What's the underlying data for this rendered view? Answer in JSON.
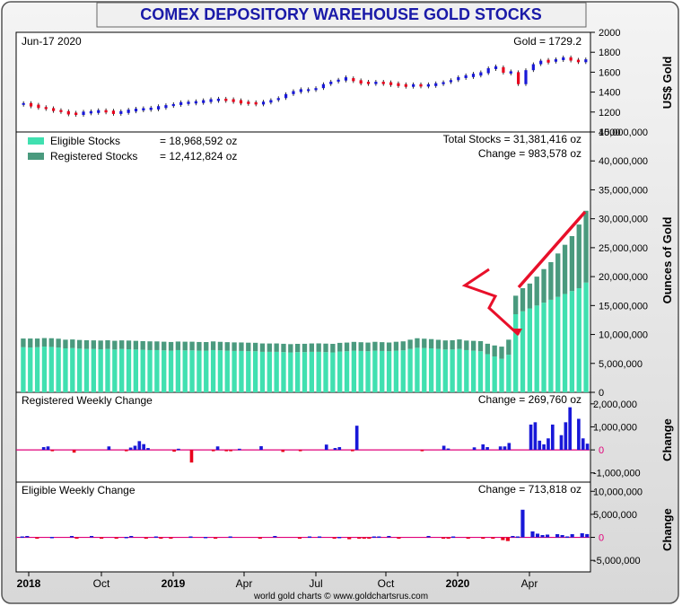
{
  "title": "COMEX DEPOSITORY WAREHOUSE GOLD STOCKS",
  "footer": "world gold charts © www.goldchartsrus.com",
  "colors": {
    "title": "#1a1aa8",
    "eligible": "#40e0b0",
    "registered": "#4a9a7e",
    "up": "#1818d8",
    "down": "#e8001c",
    "zero_line": "#e0007a",
    "annotation": "#e8102a"
  },
  "gold_panel": {
    "date_label": "Jun-17  2020",
    "price_label": "Gold = 1729.2",
    "ylabel": "US$ Gold",
    "ticks": [
      "2000",
      "1800",
      "1600",
      "1400",
      "1200",
      "1000"
    ]
  },
  "stocks_panel": {
    "legend": [
      {
        "label": "Eligible Stocks",
        "value": "= 18,968,592 oz"
      },
      {
        "label": "Registered Stocks",
        "value": "= 12,412,824 oz"
      }
    ],
    "total_label": "Total Stocks = 31,381,416 oz",
    "change_label": "Change = 983,578 oz",
    "ylabel": "Ounces of Gold",
    "ticks": [
      "45,000,000",
      "40,000,000",
      "35,000,000",
      "30,000,000",
      "25,000,000",
      "20,000,000",
      "15,000,000",
      "10,000,000",
      "5,000,000",
      "0"
    ]
  },
  "registered_panel": {
    "label": "Registered Weekly Change",
    "change_label": "Change = 269,760 oz",
    "ylabel": "Change",
    "ticks": [
      "2,000,000",
      "1,000,000",
      "0",
      "-1,000,000"
    ]
  },
  "eligible_panel": {
    "label": "Eligible Weekly Change",
    "change_label": "Change = 713,818 oz",
    "ylabel": "Change",
    "ticks": [
      "10,000,000",
      "5,000,000",
      "0",
      "-5,000,000"
    ]
  },
  "x_axis": {
    "labels": [
      "2018",
      "Oct",
      "2019",
      "Apr",
      "Jul",
      "Oct",
      "2020",
      "Apr"
    ],
    "bold": [
      true,
      false,
      true,
      false,
      false,
      false,
      true,
      false
    ]
  },
  "chart_data": [
    {
      "type": "line",
      "title": "COMEX DEPOSITORY WAREHOUSE GOLD STOCKS",
      "ylabel": "US$ Gold",
      "ylim": [
        1000,
        2000
      ],
      "x_labels": [
        "2018",
        "Oct",
        "2019",
        "Apr",
        "Jul",
        "Oct",
        "2020",
        "Apr"
      ],
      "series": [
        {
          "name": "Gold",
          "values": [
            1281,
            1265,
            1250,
            1230,
            1220,
            1200,
            1185,
            1180,
            1195,
            1200,
            1210,
            1205,
            1190,
            1200,
            1215,
            1225,
            1230,
            1235,
            1250,
            1260,
            1280,
            1290,
            1295,
            1300,
            1310,
            1320,
            1325,
            1320,
            1310,
            1295,
            1290,
            1285,
            1295,
            1320,
            1340,
            1380,
            1410,
            1420,
            1420,
            1440,
            1480,
            1505,
            1525,
            1540,
            1510,
            1495,
            1490,
            1495,
            1490,
            1480,
            1470,
            1462,
            1470,
            1465,
            1470,
            1480,
            1500,
            1520,
            1550,
            1560,
            1575,
            1590,
            1640,
            1650,
            1595,
            1600,
            1480,
            1620,
            1680,
            1715,
            1705,
            1730,
            1740,
            1725,
            1700,
            1729
          ]
        }
      ]
    },
    {
      "type": "bar",
      "title": "",
      "ylabel": "Ounces of Gold",
      "ylim": [
        0,
        45000000
      ],
      "stacked": true,
      "series": [
        {
          "name": "Eligible Stocks",
          "values": [
            7800000,
            7750000,
            7800000,
            7900000,
            7850000,
            7750000,
            7600000,
            7650000,
            7550000,
            7500000,
            7500000,
            7450000,
            7500000,
            7400000,
            7500000,
            7450000,
            7400000,
            7350000,
            7300000,
            7300000,
            7250000,
            7200000,
            7300000,
            7250000,
            7250000,
            7200000,
            7200000,
            7300000,
            7250000,
            7200000,
            7150000,
            7150000,
            7100000,
            7100000,
            7000000,
            7000000,
            7000000,
            6950000,
            6900000,
            6950000,
            6950000,
            7000000,
            7000000,
            6950000,
            6900000,
            7050000,
            7100000,
            7200000,
            7150000,
            7100000,
            7200000,
            7150000,
            7100000,
            7200000,
            7250000,
            7500000,
            7700000,
            7650000,
            7600000,
            7500000,
            7400000,
            7400000,
            7500000,
            7300000,
            7200000,
            7100000,
            6600000,
            6200000,
            5800000,
            6500000,
            13500000,
            14000000,
            14500000,
            15000000,
            15500000,
            16000000,
            16500000,
            17000000,
            17500000,
            18000000,
            18968592
          ]
        },
        {
          "name": "Registered Stocks",
          "values": [
            1500000,
            1550000,
            1500000,
            1480000,
            1500000,
            1520000,
            1500000,
            1490000,
            1500000,
            1500000,
            1480000,
            1500000,
            1500000,
            1510000,
            1480000,
            1500000,
            1500000,
            1500000,
            1510000,
            1500000,
            1500000,
            1500000,
            1480000,
            1500000,
            1500000,
            1500000,
            1490000,
            1500000,
            1480000,
            1470000,
            1480000,
            1470000,
            1480000,
            1460000,
            1450000,
            1440000,
            1450000,
            1440000,
            1430000,
            1430000,
            1440000,
            1450000,
            1460000,
            1470000,
            1480000,
            1500000,
            1500000,
            1520000,
            1510000,
            1500000,
            1530000,
            1520000,
            1510000,
            1540000,
            1560000,
            1600000,
            1650000,
            1620000,
            1600000,
            1580000,
            1570000,
            1600000,
            1650000,
            1650000,
            1700000,
            1750000,
            1800000,
            1900000,
            2100000,
            2600000,
            3200000,
            4000000,
            4300000,
            5000000,
            5800000,
            6500000,
            7500000,
            8500000,
            9500000,
            11000000,
            12412824
          ]
        }
      ]
    },
    {
      "type": "bar",
      "title": "Registered Weekly Change",
      "ylabel": "Change",
      "ylim": [
        -1400000,
        2500000
      ],
      "series": [
        {
          "name": "Registered Weekly Change",
          "values": [
            0,
            0,
            0,
            0,
            0,
            120000,
            150000,
            -30000,
            0,
            0,
            0,
            0,
            -120000,
            0,
            0,
            0,
            0,
            0,
            0,
            0,
            150000,
            0,
            0,
            0,
            -20000,
            100000,
            180000,
            380000,
            250000,
            80000,
            0,
            0,
            0,
            0,
            0,
            -80000,
            50000,
            0,
            0,
            -550000,
            0,
            0,
            0,
            0,
            -20000,
            150000,
            0,
            -60000,
            -30000,
            0,
            50000,
            0,
            0,
            0,
            0,
            160000,
            0,
            0,
            0,
            0,
            -90000,
            0,
            0,
            0,
            -40000,
            0,
            0,
            0,
            0,
            0,
            230000,
            0,
            80000,
            120000,
            0,
            0,
            -50000,
            1050000,
            0,
            0,
            0,
            0,
            0,
            0,
            0,
            0,
            0,
            0,
            0,
            0,
            0,
            0,
            -30000,
            0,
            0,
            0,
            0,
            180000,
            60000,
            0,
            0,
            0,
            0,
            0,
            110000,
            0,
            240000,
            120000,
            0,
            0,
            150000,
            150000,
            300000,
            0,
            0,
            0,
            0,
            1100000,
            1200000,
            400000,
            240000,
            500000,
            1100000,
            0,
            640000,
            1200000,
            1850000,
            0,
            1350000,
            500000,
            270000
          ]
        }
      ]
    },
    {
      "type": "bar",
      "title": "Eligible Weekly Change",
      "ylabel": "Change",
      "ylim": [
        -7500000,
        12000000
      ],
      "series": [
        {
          "name": "Eligible Weekly Change",
          "values": [
            200000,
            300000,
            0,
            -200000,
            0,
            0,
            100000,
            0,
            0,
            0,
            300000,
            -100000,
            0,
            0,
            300000,
            0,
            -200000,
            0,
            0,
            -200000,
            0,
            100000,
            300000,
            0,
            0,
            -300000,
            0,
            200000,
            -100000,
            0,
            -200000,
            0,
            0,
            0,
            200000,
            0,
            0,
            100000,
            0,
            -300000,
            0,
            0,
            200000,
            0,
            0,
            0,
            0,
            0,
            -200000,
            0,
            0,
            300000,
            0,
            0,
            0,
            0,
            -300000,
            0,
            200000,
            0,
            200000,
            0,
            0,
            -200000,
            100000,
            0,
            -400000,
            0,
            -200000,
            -200000,
            -200000,
            200000,
            200000,
            0,
            300000,
            0,
            -200000,
            0,
            0,
            0,
            0,
            0,
            300000,
            0,
            0,
            -200000,
            -200000,
            200000,
            0,
            0,
            -300000,
            0,
            0,
            -300000,
            0,
            -200000,
            0,
            -600000,
            -800000,
            300000,
            200000,
            6000000,
            0,
            1300000,
            800000,
            500000,
            600000,
            0,
            700000,
            500000,
            200000,
            700000,
            0,
            900000,
            714000
          ]
        }
      ]
    }
  ]
}
